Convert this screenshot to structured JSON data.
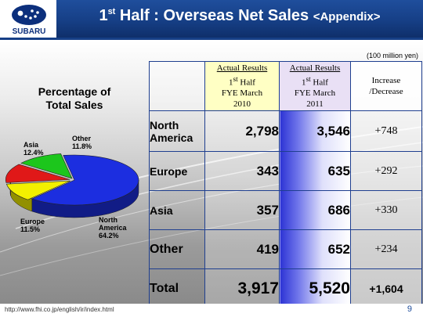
{
  "header": {
    "brand": "SUBARU",
    "title_main": "1",
    "title_sup": "st",
    "title_rest": " Half : Overseas Net Sales ",
    "title_appendix": "<Appendix>"
  },
  "unit_note": "(100 million yen)",
  "pie": {
    "title_line1": "Percentage of",
    "title_line2": "Total Sales",
    "slices": [
      {
        "name": "North America",
        "label_line1": "North",
        "label_line2": "America",
        "pct_label": "64.2%",
        "value": 64.2,
        "color": "#1c2ee0"
      },
      {
        "name": "Europe",
        "label_line1": "Europe",
        "pct_label": "11.5%",
        "value": 11.5,
        "color": "#f3f000"
      },
      {
        "name": "Asia",
        "label_line1": "Asia",
        "pct_label": "12.4%",
        "value": 12.4,
        "color": "#e01818"
      },
      {
        "name": "Other",
        "label_line1": "Other",
        "pct_label": "11.8%",
        "value": 11.8,
        "color": "#1cc61c"
      }
    ]
  },
  "table": {
    "col_2010": {
      "line1": "Actual Results",
      "line2_num": "1",
      "line2_sup": "st",
      "line2_rest": " Half",
      "line3": "FYE March",
      "line4": "2010"
    },
    "col_2011": {
      "line1": "Actual Results",
      "line2_num": "1",
      "line2_sup": "st",
      "line2_rest": " Half",
      "line3": "FYE March",
      "line4": "2011"
    },
    "col_inc": {
      "line1": "Increase",
      "line2": "/Decrease"
    },
    "rows": [
      {
        "label_line1": "North",
        "label_line2": "America",
        "v2010": "2,798",
        "v2011": "3,546",
        "inc": "+748"
      },
      {
        "label_line1": "Europe",
        "label_line2": "",
        "v2010": "343",
        "v2011": "635",
        "inc": "+292"
      },
      {
        "label_line1": "Asia",
        "label_line2": "",
        "v2010": "357",
        "v2011": "686",
        "inc": "+330"
      },
      {
        "label_line1": "Other",
        "label_line2": "",
        "v2010": "419",
        "v2011": "652",
        "inc": "+234"
      }
    ],
    "total": {
      "label": "Total",
      "v2010": "3,917",
      "v2011": "5,520",
      "inc": "+1,604"
    }
  },
  "footer": {
    "url": "http://www.fhi.co.jp/english/ir/index.html",
    "page": "9"
  }
}
